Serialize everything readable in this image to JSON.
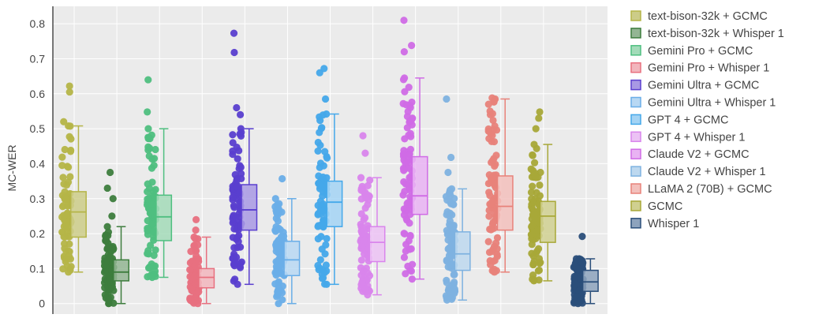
{
  "chart_data": {
    "type": "box",
    "title": "",
    "xlabel": "",
    "ylabel": "MC-WER",
    "ylim": [
      -0.03,
      0.85
    ],
    "yticks": [
      0,
      0.1,
      0.2,
      0.3,
      0.4,
      0.5,
      0.6,
      0.7,
      0.8
    ],
    "ytick_labels": [
      "0",
      "0.1",
      "0.2",
      "0.3",
      "0.4",
      "0.5",
      "0.6",
      "0.7",
      "0.8"
    ],
    "grid": true,
    "legend_position": "right",
    "points_shown": "all",
    "series": [
      {
        "name": "text-bison-32k + GCMC",
        "color": "#b5b548",
        "fill": "#cccc88",
        "min": 0.09,
        "q1": 0.19,
        "median": 0.262,
        "q3": 0.32,
        "max": 0.508,
        "outliers": [
          0.52,
          0.605,
          0.622
        ]
      },
      {
        "name": "text-bison-32k + Whisper 1",
        "color": "#3d7d3d",
        "fill": "#93b593",
        "min": 0.0,
        "q1": 0.065,
        "median": 0.09,
        "q3": 0.125,
        "max": 0.22,
        "outliers": [
          0.25,
          0.3,
          0.33,
          0.375
        ]
      },
      {
        "name": "Gemini Pro + GCMC",
        "color": "#4fbf80",
        "fill": "#a3dbb9",
        "min": 0.075,
        "q1": 0.18,
        "median": 0.248,
        "q3": 0.31,
        "max": 0.5,
        "outliers": [
          0.548,
          0.64
        ]
      },
      {
        "name": "Gemini Pro + Whisper 1",
        "color": "#e8707f",
        "fill": "#f2b6bd",
        "min": 0.0,
        "q1": 0.045,
        "median": 0.075,
        "q3": 0.1,
        "max": 0.19,
        "outliers": [
          0.21,
          0.24
        ]
      },
      {
        "name": "Gemini Ultra + GCMC",
        "color": "#5a3fcf",
        "fill": "#a899e4",
        "min": 0.055,
        "q1": 0.21,
        "median": 0.268,
        "q3": 0.34,
        "max": 0.5,
        "outliers": [
          0.54,
          0.56,
          0.718,
          0.773
        ]
      },
      {
        "name": "Gemini Ultra + Whisper 1",
        "color": "#6aaee8",
        "fill": "#b8d8f3",
        "min": 0.0,
        "q1": 0.08,
        "median": 0.125,
        "q3": 0.178,
        "max": 0.3,
        "outliers": [
          0.357
        ]
      },
      {
        "name": "GPT 4 + GCMC",
        "color": "#44a8ea",
        "fill": "#a3d3f4",
        "min": 0.055,
        "q1": 0.22,
        "median": 0.29,
        "q3": 0.35,
        "max": 0.542,
        "outliers": [
          0.585,
          0.66,
          0.672
        ]
      },
      {
        "name": "GPT 4 + Whisper 1",
        "color": "#d985ec",
        "fill": "#ecc2f5",
        "min": 0.025,
        "q1": 0.12,
        "median": 0.175,
        "q3": 0.22,
        "max": 0.36,
        "outliers": [
          0.43,
          0.48
        ]
      },
      {
        "name": "Claude V2 + GCMC",
        "color": "#d06ce6",
        "fill": "#e9b3f3",
        "min": 0.07,
        "q1": 0.255,
        "median": 0.308,
        "q3": 0.42,
        "max": 0.645,
        "outliers": [
          0.72,
          0.738,
          0.81
        ]
      },
      {
        "name": "Claude V2 + Whisper 1",
        "color": "#7eb2e0",
        "fill": "#bdd8ef",
        "min": 0.01,
        "q1": 0.095,
        "median": 0.142,
        "q3": 0.205,
        "max": 0.328,
        "outliers": [
          0.375,
          0.418,
          0.585
        ]
      },
      {
        "name": "LLaMA 2 (70B) + GCMC",
        "color": "#e8827a",
        "fill": "#f3c0bc",
        "min": 0.09,
        "q1": 0.21,
        "median": 0.278,
        "q3": 0.365,
        "max": 0.585,
        "outliers": [
          0.588
        ]
      },
      {
        "name": "GCMC",
        "color": "#a8a838",
        "fill": "#d0d090",
        "min": 0.065,
        "q1": 0.175,
        "median": 0.25,
        "q3": 0.292,
        "max": 0.455,
        "outliers": [
          0.5,
          0.53,
          0.548
        ]
      },
      {
        "name": "Whisper 1",
        "color": "#2a4e7a",
        "fill": "#8da3bd",
        "min": 0.0,
        "q1": 0.035,
        "median": 0.062,
        "q3": 0.095,
        "max": 0.128,
        "outliers": [
          0.192
        ]
      }
    ]
  }
}
